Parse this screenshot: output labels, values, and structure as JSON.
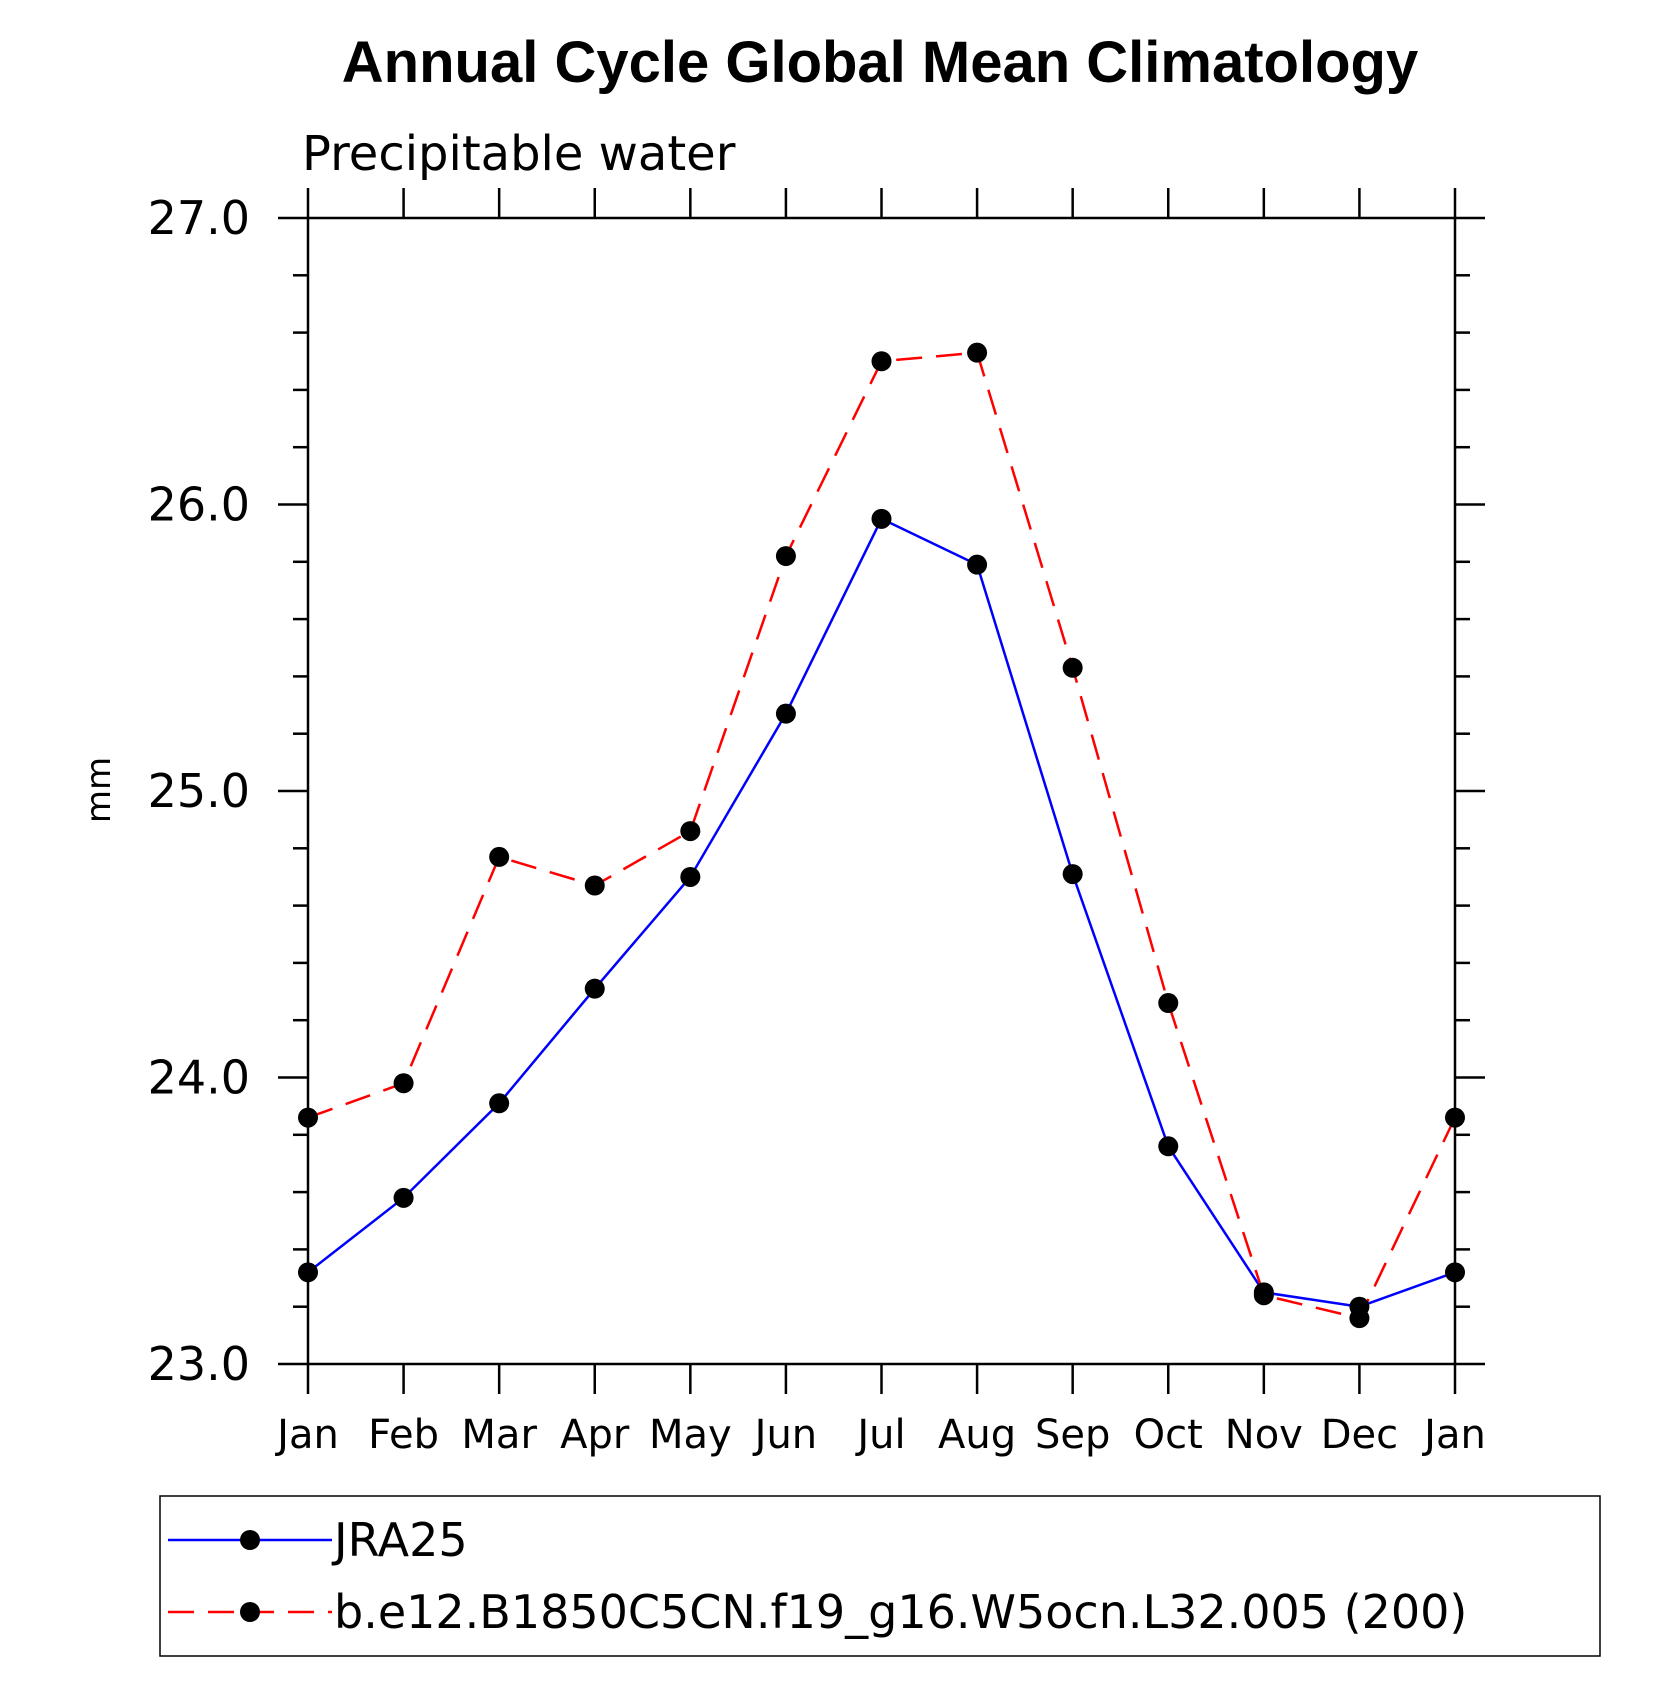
{
  "chart_data": {
    "type": "line",
    "title": "Annual Cycle Global Mean Climatology",
    "subtitle": "Precipitable water",
    "xlabel": "",
    "ylabel": "mm",
    "categories": [
      "Jan",
      "Feb",
      "Mar",
      "Apr",
      "May",
      "Jun",
      "Jul",
      "Aug",
      "Sep",
      "Oct",
      "Nov",
      "Dec",
      "Jan"
    ],
    "ylim": [
      23.0,
      27.0
    ],
    "y_ticks": [
      "23.0",
      "24.0",
      "25.0",
      "26.0",
      "27.0"
    ],
    "y_minor_step": 0.2,
    "grid": false,
    "legend_position": "bottom",
    "series": [
      {
        "name": "JRA25",
        "color": "#0000ff",
        "dash": "solid",
        "marker": "filled-circle",
        "values": [
          23.32,
          23.58,
          23.91,
          24.31,
          24.7,
          25.27,
          25.95,
          25.79,
          24.71,
          23.76,
          23.25,
          23.2,
          23.32
        ]
      },
      {
        "name": "b.e12.B1850C5CN.f19_g16.W5ocn.L32.005 (200)",
        "color": "#ff0000",
        "dash": "dashed",
        "marker": "filled-circle",
        "values": [
          23.86,
          23.98,
          24.77,
          24.67,
          24.86,
          25.82,
          26.5,
          26.53,
          25.43,
          24.26,
          23.24,
          23.16,
          23.86
        ]
      }
    ]
  }
}
